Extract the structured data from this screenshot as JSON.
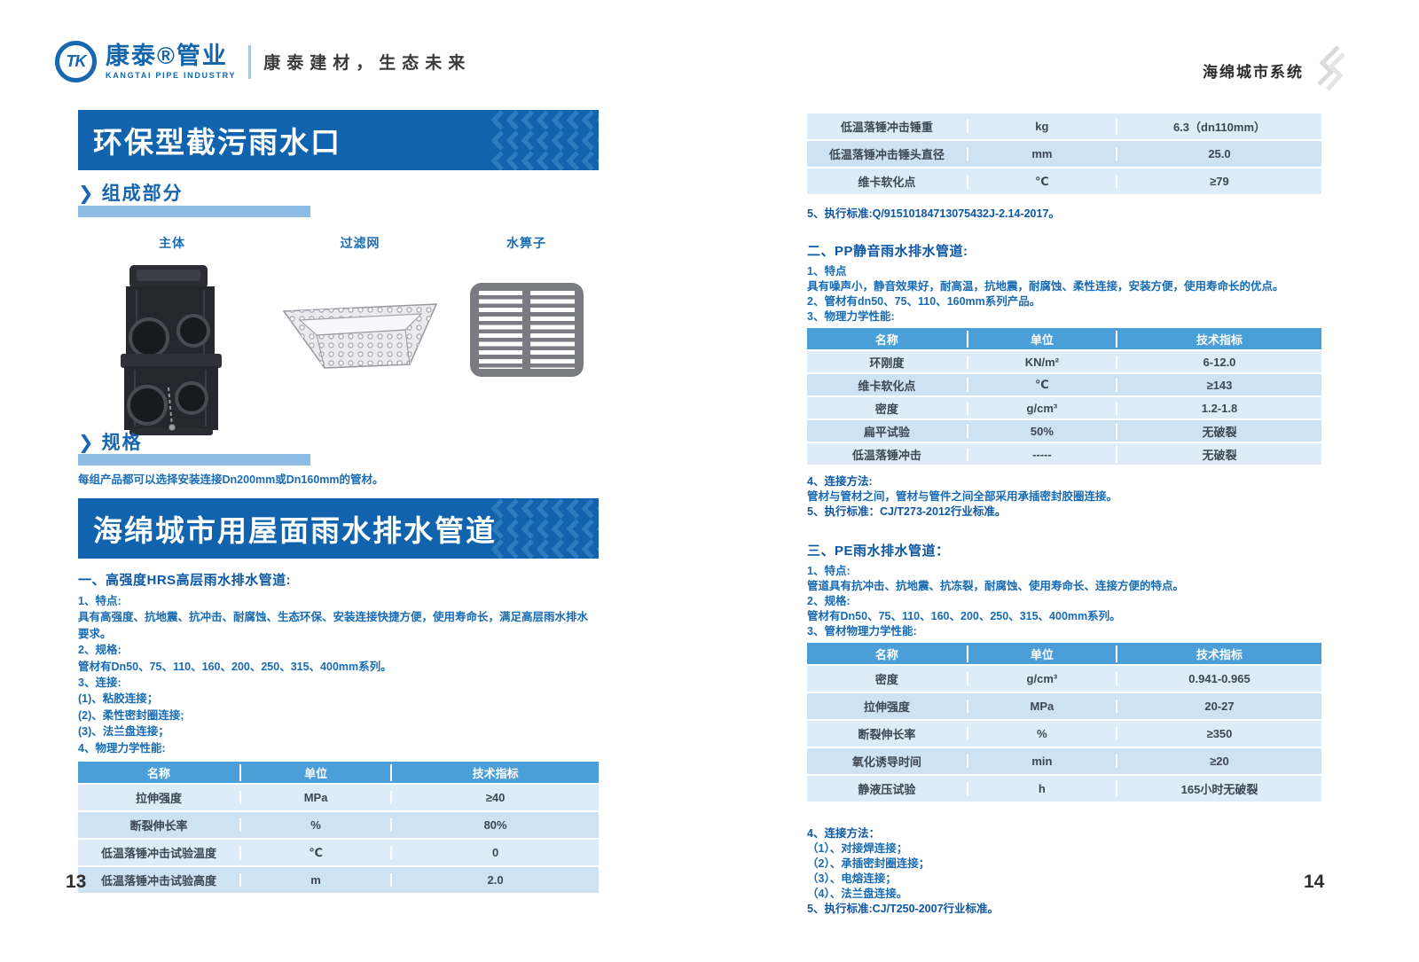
{
  "colors": {
    "banner_blue": "#1263ad",
    "chevron_pattern_blue": "#2e7cc0",
    "heading_blue": "#1566ae",
    "bar_light_blue": "#8cbbe4",
    "body_text_blue": "#176bb4",
    "table_header_blue": "#4b9fd9",
    "table_row_light": "#ddecf8",
    "table_row_alt": "#cde3f3",
    "table_cell_text": "#3d4754"
  },
  "icons": {
    "section_chevron": "❯"
  },
  "header": {
    "logo_monogram": "TK",
    "brand": "康泰®管业",
    "brand_en": "KANGTAI PIPE INDUSTRY",
    "tagline": "康泰建材，生态未来",
    "right_label": "海绵城市系统"
  },
  "left": {
    "page_number": "13",
    "banner1": "环保型截污雨水口",
    "components": {
      "heading": "组成部分",
      "items": [
        {
          "label": "主体"
        },
        {
          "label": "过滤网"
        },
        {
          "label": "水箅子"
        }
      ]
    },
    "specs": {
      "heading": "规格",
      "text": "每组产品都可以选择安装连接Dn200mm或Dn160mm的管材。"
    },
    "banner2": "海绵城市用屋面雨水排水管道",
    "section1": {
      "title": "一、高强度HRS高层雨水排水管道:",
      "lines": [
        {
          "t": "1、特点:",
          "b": false
        },
        {
          "t": "具有高强度、抗地震、抗冲击、耐腐蚀、生态环保、安装连接快捷方便，使用寿命长，满足高层雨水排水要求。",
          "b": false
        },
        {
          "t": "2、规格:",
          "b": false
        },
        {
          "t": "管材有Dn50、75、110、160、200、250、315、400mm系列。",
          "b": false
        },
        {
          "t": "3、连接:",
          "b": false
        },
        {
          "t": "(1)、粘胶连接；",
          "b": false
        },
        {
          "t": "(2)、柔性密封圈连接;",
          "b": false
        },
        {
          "t": "(3)、法兰盘连接；",
          "b": false
        },
        {
          "t": "4、物理力学性能:",
          "b": false
        }
      ],
      "table": {
        "headers": [
          "名称",
          "单位",
          "技术指标"
        ],
        "rows": [
          [
            "拉伸强度",
            "MPa",
            "≥40"
          ],
          [
            "断裂伸长率",
            "%",
            "80%"
          ],
          [
            "低温落锤冲击试验温度",
            "℃",
            "0"
          ],
          [
            "低温落锤冲击试验高度",
            "m",
            "2.0"
          ]
        ]
      }
    }
  },
  "right": {
    "page_number": "14",
    "table_continued": {
      "rows": [
        [
          "低温落锤冲击锤重",
          "kg",
          "6.3（dn110mm）"
        ],
        [
          "低温落锤冲击锤头直径",
          "mm",
          "25.0"
        ],
        [
          "维卡软化点",
          "℃",
          "≥79"
        ]
      ]
    },
    "standard_note": "5、执行标准:Q/91510184713075432J-2.14-2017。",
    "section2": {
      "title": "二、PP静音雨水排水管道:",
      "lines": [
        {
          "t": "1、特点",
          "b": false
        },
        {
          "t": "具有噪声小，静音效果好，耐高温，抗地震，耐腐蚀、柔性连接，安装方便，使用寿命长的优点。",
          "b": false
        },
        {
          "t": "2、管材有dn50、75、110、160mm系列产品。",
          "b": false
        },
        {
          "t": "3、物理力学性能:",
          "b": false
        }
      ],
      "table": {
        "headers": [
          "名称",
          "单位",
          "技术指标"
        ],
        "rows": [
          [
            "环刚度",
            "KN/m²",
            "6-12.0"
          ],
          [
            "维卡软化点",
            "℃",
            "≥143"
          ],
          [
            "密度",
            "g/cm³",
            "1.2-1.8"
          ],
          [
            "扁平试验",
            "50%",
            "无破裂"
          ],
          [
            "低温落锤冲击",
            "-----",
            "无破裂"
          ]
        ]
      },
      "post_lines": [
        {
          "t": "4、连接方法:",
          "b": true
        },
        {
          "t": "管材与管材之间，管材与管件之间全部采用承插密封胶圈连接。",
          "b": false
        },
        {
          "t": "5、执行标准：CJ/T273-2012行业标准。",
          "b": true
        }
      ]
    },
    "section3": {
      "title": "三、PE雨水排水管道：",
      "lines": [
        {
          "t": "1、特点:",
          "b": false
        },
        {
          "t": "管道具有抗冲击、抗地震、抗冻裂，耐腐蚀、使用寿命长、连接方便的特点。",
          "b": false
        },
        {
          "t": "2、规格:",
          "b": false
        },
        {
          "t": "管材有Dn50、75、110、160、200、250、315、400mm系列。",
          "b": false
        },
        {
          "t": "3、管材物理力学性能:",
          "b": false
        }
      ],
      "table": {
        "headers": [
          "名称",
          "单位",
          "技术指标"
        ],
        "rows": [
          [
            "密度",
            "g/cm³",
            "0.941-0.965"
          ],
          [
            "拉伸强度",
            "MPa",
            "20-27"
          ],
          [
            "断裂伸长率",
            "%",
            "≥350"
          ],
          [
            "氧化诱导时间",
            "min",
            "≥20"
          ],
          [
            "静液压试验",
            "h",
            "165小时无破裂"
          ]
        ]
      },
      "post_lines": [
        {
          "t": "4、连接方法：",
          "b": true
        },
        {
          "t": "（1）、对接焊连接；",
          "b": false
        },
        {
          "t": "（2）、承插密封圈连接；",
          "b": false
        },
        {
          "t": "（3）、电熔连接；",
          "b": false
        },
        {
          "t": "（4）、法兰盘连接。",
          "b": false
        },
        {
          "t": "5、执行标准:CJ/T250-2007行业标准。",
          "b": true
        }
      ]
    }
  }
}
